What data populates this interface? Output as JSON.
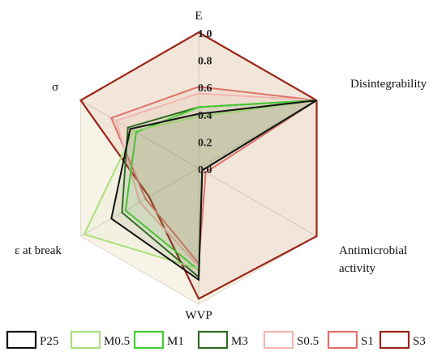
{
  "chart_data": {
    "type": "radar",
    "axes": [
      "E",
      "Disintegrability",
      "Antimicrobial activity",
      "WVP",
      "ε at break",
      "σ"
    ],
    "axis_label_lines": [
      [
        "E"
      ],
      [
        "Disintegrability"
      ],
      [
        "Antimicrobial",
        "activity"
      ],
      [
        "WVP"
      ],
      [
        "ε at break"
      ],
      [
        "σ"
      ]
    ],
    "r_ticks": [
      "0.0",
      "0.2",
      "0.4",
      "0.6",
      "0.8",
      "1.0"
    ],
    "rlim": [
      0,
      1
    ],
    "grid": true,
    "legend_position": "bottom",
    "series": [
      {
        "name": "P25",
        "color": "#111111",
        "width": 2.0,
        "values": [
          0.4,
          1.0,
          0.03,
          0.82,
          0.74,
          0.58
        ]
      },
      {
        "name": "M0.5",
        "color": "#a8df7a",
        "width": 2.0,
        "values": [
          0.38,
          1.0,
          0.03,
          0.74,
          0.97,
          0.55
        ]
      },
      {
        "name": "M1",
        "color": "#44cc33",
        "width": 2.0,
        "values": [
          0.45,
          1.0,
          0.03,
          0.75,
          0.62,
          0.53
        ]
      },
      {
        "name": "M3",
        "color": "#2d6b1f",
        "width": 2.0,
        "values": [
          0.45,
          1.0,
          0.03,
          0.8,
          0.65,
          0.6
        ]
      },
      {
        "name": "S0.5",
        "color": "#f2b5b2",
        "width": 2.0,
        "values": [
          0.55,
          1.0,
          0.03,
          0.72,
          0.5,
          0.7
        ]
      },
      {
        "name": "S1",
        "color": "#e07068",
        "width": 2.0,
        "values": [
          0.6,
          1.0,
          0.06,
          0.7,
          0.45,
          0.74
        ]
      },
      {
        "name": "S3",
        "color": "#9b2418",
        "width": 2.2,
        "values": [
          1.0,
          1.0,
          1.0,
          0.96,
          0.42,
          1.0
        ]
      }
    ]
  }
}
